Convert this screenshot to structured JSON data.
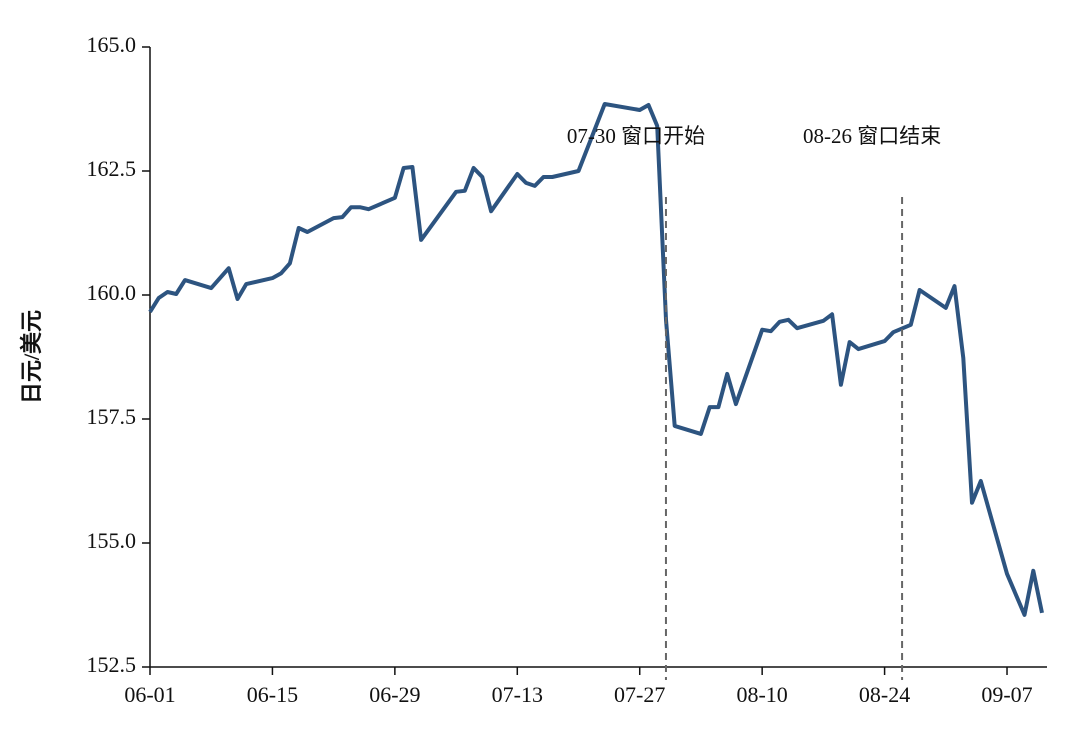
{
  "chart_data": {
    "type": "line",
    "y_label": "日元/美元",
    "x": [
      "06-01",
      "06-02",
      "06-03",
      "06-04",
      "06-05",
      "06-08",
      "06-10",
      "06-11",
      "06-12",
      "06-15",
      "06-16",
      "06-17",
      "06-18",
      "06-19",
      "06-22",
      "06-23",
      "06-24",
      "06-25",
      "06-26",
      "06-29",
      "06-30",
      "07-01",
      "07-02",
      "07-06",
      "07-07",
      "07-08",
      "07-09",
      "07-10",
      "07-13",
      "07-14",
      "07-15",
      "07-16",
      "07-17",
      "07-20",
      "07-23",
      "07-27",
      "07-28",
      "07-29",
      "07-30",
      "07-31",
      "08-03",
      "08-04",
      "08-05",
      "08-06",
      "08-07",
      "08-10",
      "08-11",
      "08-12",
      "08-13",
      "08-14",
      "08-17",
      "08-18",
      "08-19",
      "08-20",
      "08-21",
      "08-24",
      "08-25",
      "08-27",
      "08-28",
      "08-31",
      "09-01",
      "09-02",
      "09-03",
      "09-04",
      "09-07",
      "09-09",
      "09-10",
      "09-11"
    ],
    "series": [
      {
        "name": "日元/美元",
        "color": "#2d5480",
        "values": [
          159.66,
          159.94,
          160.06,
          160.02,
          160.3,
          160.14,
          160.54,
          159.92,
          160.22,
          160.34,
          160.44,
          160.64,
          161.35,
          161.27,
          161.55,
          161.57,
          161.77,
          161.77,
          161.73,
          161.96,
          162.56,
          162.58,
          161.11,
          162.08,
          162.1,
          162.56,
          162.38,
          161.69,
          162.44,
          162.26,
          162.2,
          162.38,
          162.38,
          162.5,
          163.85,
          163.73,
          163.83,
          163.41,
          159.5,
          157.36,
          157.2,
          157.74,
          157.74,
          158.41,
          157.8,
          159.3,
          159.27,
          159.46,
          159.5,
          159.33,
          159.48,
          159.61,
          158.19,
          159.05,
          158.91,
          159.07,
          159.25,
          159.4,
          160.1,
          159.74,
          160.18,
          158.73,
          155.81,
          156.25,
          154.38,
          153.55,
          154.44,
          153.59
        ]
      }
    ],
    "xlim": [
      "06-01",
      "09-11"
    ],
    "xticks": [
      "06-01",
      "06-15",
      "06-29",
      "07-13",
      "07-27",
      "08-10",
      "08-24",
      "09-07"
    ],
    "ylim": [
      152.5,
      165
    ],
    "yticks": [
      152.5,
      {
        "value": 155,
        "label": "155.0"
      },
      157.5,
      {
        "value": 160,
        "label": "160.0"
      },
      162.5,
      {
        "value": 165,
        "label": "165.0"
      }
    ],
    "annotations": [
      {
        "x": "07-30",
        "text": "07-30 窗口开始"
      },
      {
        "x": "08-26",
        "text": "08-26 窗口结束"
      }
    ]
  }
}
